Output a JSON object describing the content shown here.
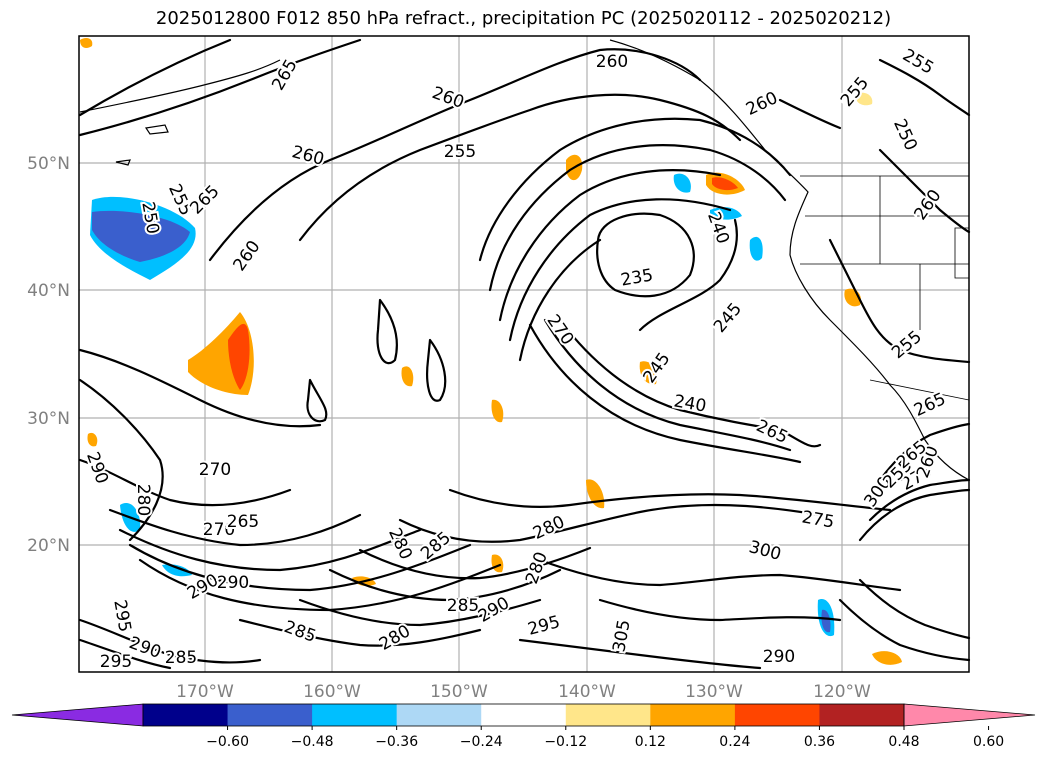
{
  "title": "2025012800 F012 850 hPa refract., precipitation PC (2025020112 - 2025020212)",
  "map": {
    "lat_labels": [
      "50°N",
      "40°N",
      "30°N",
      "20°N"
    ],
    "lon_labels": [
      "170°W",
      "160°W",
      "150°W",
      "140°W",
      "130°W",
      "120°W"
    ],
    "contour_labels": [
      "265",
      "260",
      "260",
      "255",
      "260",
      "255",
      "265",
      "260",
      "255",
      "260",
      "255",
      "250",
      "260",
      "240",
      "235",
      "245",
      "270",
      "245",
      "240",
      "265",
      "255",
      "265",
      "290",
      "280",
      "270",
      "265",
      "280",
      "285",
      "290",
      "295",
      "290",
      "285",
      "295",
      "290",
      "285",
      "280",
      "275",
      "280",
      "285",
      "290",
      "295",
      "280",
      "305",
      "300",
      "290",
      "300",
      "275",
      "255",
      "260",
      "265",
      "270",
      "250"
    ]
  },
  "colorbar": {
    "colors": [
      "#8a2be2",
      "#00008b",
      "#3a5fcd",
      "#00bfff",
      "#add8f5",
      "#ffffff",
      "#ffe68a",
      "#ffa500",
      "#ff4500",
      "#b22222",
      "#ff88aa"
    ],
    "tick_labels": [
      "−0.60",
      "−0.48",
      "−0.36",
      "−0.24",
      "−0.12",
      "0.12",
      "0.24",
      "0.36",
      "0.48",
      "0.60"
    ]
  }
}
